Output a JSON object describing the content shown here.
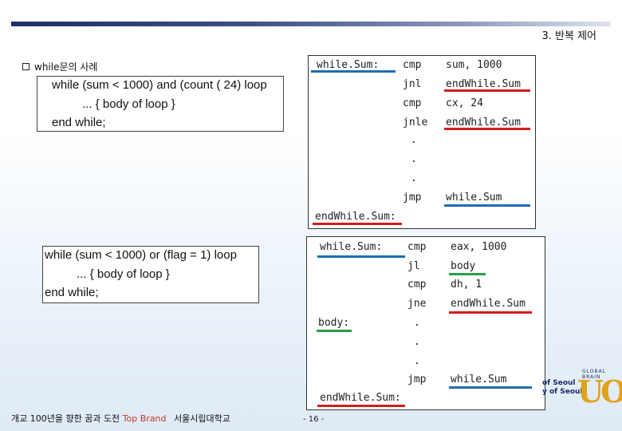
{
  "header": {
    "chapter": "3. 반복 제어"
  },
  "section": {
    "title": "while문의 사례"
  },
  "example1": {
    "lines": [
      "while (sum < 1000) and (count ( 24) loop",
      "... { body of loop }",
      "end while;"
    ]
  },
  "asm1": {
    "rows": [
      {
        "label": "while.Sum:",
        "op": "cmp",
        "arg": "sum, 1000"
      },
      {
        "label": "",
        "op": "jnl",
        "arg": "endWhile.Sum"
      },
      {
        "label": "",
        "op": "cmp",
        "arg": "cx, 24"
      },
      {
        "label": "",
        "op": "jnle",
        "arg": "endWhile.Sum"
      },
      {
        "label": "",
        "op": ".",
        "arg": ""
      },
      {
        "label": "",
        "op": ".",
        "arg": ""
      },
      {
        "label": "",
        "op": ".",
        "arg": ""
      },
      {
        "label": "",
        "op": "jmp",
        "arg": "while.Sum"
      },
      {
        "label": "endWhile.Sum:",
        "op": "",
        "arg": ""
      }
    ]
  },
  "example2": {
    "lines": [
      "while (sum < 1000) or (flag = 1) loop",
      "... { body of loop }",
      "end while;"
    ]
  },
  "asm2": {
    "rows": [
      {
        "label": "while.Sum:",
        "op": "cmp",
        "arg": "eax, 1000"
      },
      {
        "label": "",
        "op": "jl",
        "arg": "body"
      },
      {
        "label": "",
        "op": "cmp",
        "arg": "dh, 1"
      },
      {
        "label": "",
        "op": "jne",
        "arg": "endWhile.Sum"
      },
      {
        "label": "body:",
        "op": ".",
        "arg": ""
      },
      {
        "label": "",
        "op": ".",
        "arg": ""
      },
      {
        "label": "",
        "op": ".",
        "arg": ""
      },
      {
        "label": "",
        "op": "jmp",
        "arg": "while.Sum"
      },
      {
        "label": "endWhile.Sum:",
        "op": "",
        "arg": ""
      }
    ]
  },
  "footer": {
    "text": "개교 100년을 향한 꿈과 도전",
    "brand": "Top Brand",
    "university": "서울시립대학교",
    "page": "- 16 -"
  },
  "logo": {
    "letters": "UOS",
    "tag": "GLOBAL BRAIN",
    "side1": "of Seoul",
    "side2": "y of Seoul"
  },
  "colors": {
    "blue": "#1f6bb5",
    "red": "#d21c1c",
    "green": "#28a046"
  }
}
